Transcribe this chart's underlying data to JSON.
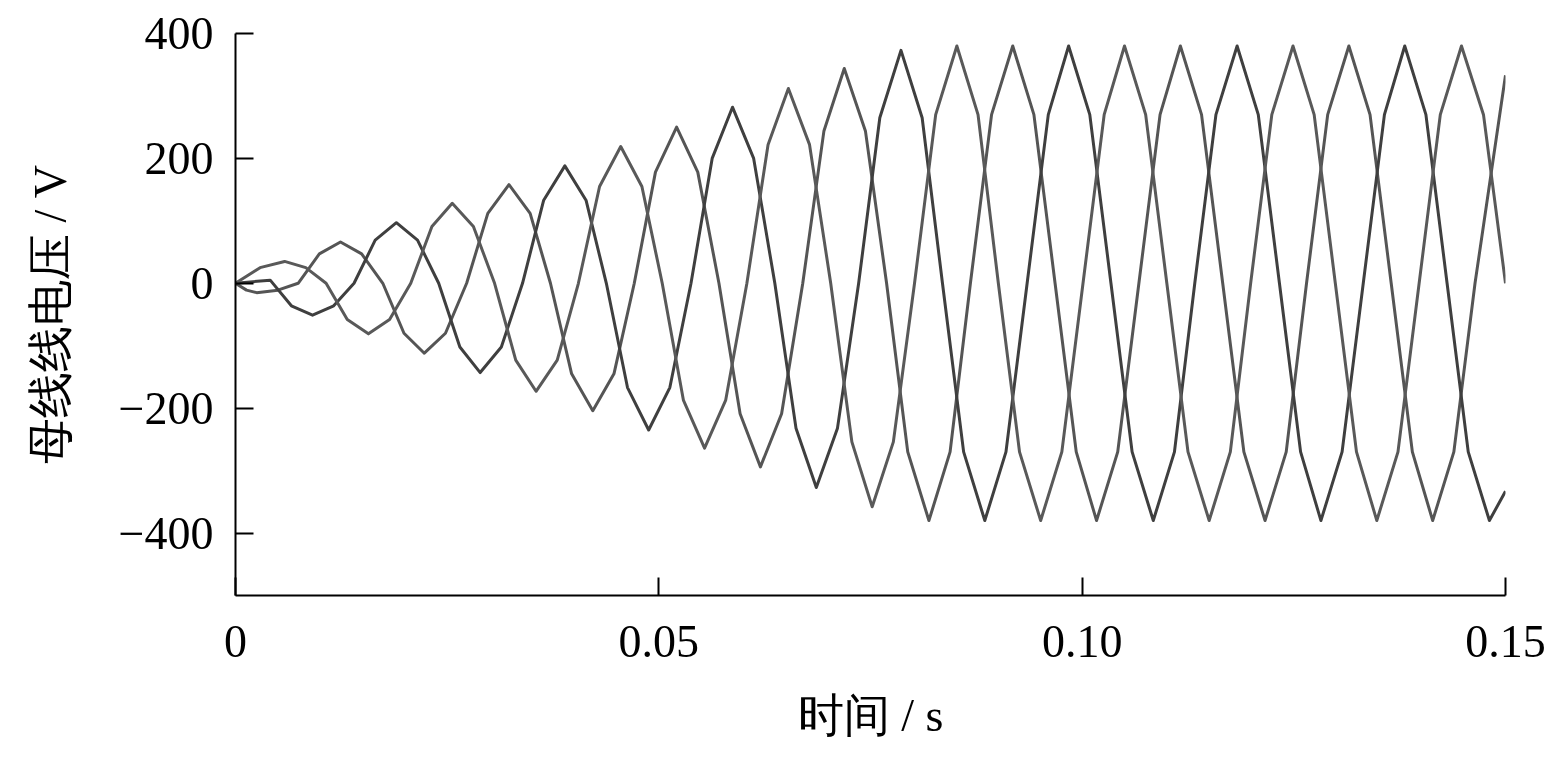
{
  "chart_data": {
    "type": "line",
    "xlabel": "时间 / s",
    "ylabel": "母线线电压 / V",
    "xlim": [
      0,
      0.15
    ],
    "ylim": [
      -500,
      400
    ],
    "xticks": [
      0,
      0.05,
      {
        "value": 0.1,
        "label": "0.10"
      },
      0.15
    ],
    "yticks": [
      {
        "value": -400,
        "label": "−400"
      },
      {
        "value": -200,
        "label": "−200"
      },
      0,
      200,
      400
    ],
    "line_style": "solid",
    "series": [
      {
        "color": "#555555",
        "x": [
          0,
          0.0013,
          0.0025,
          0.005,
          0.0074,
          0.0099,
          0.0124,
          0.0149,
          0.0174,
          0.0199,
          0.0223,
          0.0248,
          0.0273,
          0.0298,
          0.0323,
          0.0348,
          0.0372,
          0.0397,
          0.0422,
          0.0447,
          0.0471,
          0.0496,
          0.0521,
          0.0546,
          0.0571,
          0.0596,
          0.062,
          0.0645,
          0.067,
          0.0695,
          0.0719,
          0.0744,
          0.0769,
          0.0794,
          0.0819,
          0.0844,
          0.0868,
          0.0893,
          0.0918,
          0.0943,
          0.0968,
          0.0993,
          0.1017,
          0.1042,
          0.1067,
          0.1092,
          0.1116,
          0.1141,
          0.1166,
          0.1191,
          0.1216,
          0.1241,
          0.1265,
          0.129,
          0.1315,
          0.134,
          0.1365,
          0.139,
          0.1414,
          0.1439,
          0.1464,
          0.15
        ],
        "values": [
          0,
          -11,
          -15,
          -11,
          0,
          47,
          66,
          47,
          0,
          -80,
          -112,
          -80,
          0,
          112,
          158,
          112,
          0,
          -145,
          -204,
          -145,
          0,
          178,
          250,
          178,
          0,
          -209,
          -294,
          -209,
          0,
          244,
          344,
          244,
          0,
          -270,
          -380,
          -270,
          0,
          270,
          380,
          270,
          0,
          -270,
          -380,
          -270,
          0,
          270,
          380,
          270,
          0,
          -270,
          -380,
          -270,
          0,
          270,
          380,
          270,
          0,
          -270,
          -380,
          -270,
          0,
          333
        ]
      },
      {
        "color": "#3f3f3f",
        "x": [
          0,
          0.0041,
          0.0066,
          0.0091,
          0.0116,
          0.014,
          0.0165,
          0.019,
          0.0215,
          0.024,
          0.0265,
          0.0289,
          0.0314,
          0.0339,
          0.0364,
          0.0389,
          0.0414,
          0.0438,
          0.0463,
          0.0488,
          0.0513,
          0.0538,
          0.0563,
          0.0587,
          0.0612,
          0.0637,
          0.0662,
          0.0686,
          0.0711,
          0.0736,
          0.0761,
          0.0786,
          0.0811,
          0.0835,
          0.086,
          0.0885,
          0.091,
          0.0935,
          0.096,
          0.0984,
          0.1009,
          0.1034,
          0.1059,
          0.1084,
          0.1109,
          0.1133,
          0.1158,
          0.1183,
          0.1208,
          0.1233,
          0.1258,
          0.1282,
          0.1307,
          0.1332,
          0.1357,
          0.1381,
          0.1406,
          0.1431,
          0.1456,
          0.1481,
          0.15
        ],
        "values": [
          0,
          5,
          -36,
          -51,
          -36,
          0,
          69,
          97,
          69,
          0,
          -102,
          -143,
          -102,
          0,
          133,
          188,
          133,
          0,
          -167,
          -235,
          -167,
          0,
          200,
          282,
          200,
          0,
          -232,
          -327,
          -232,
          0,
          265,
          373,
          265,
          0,
          -270,
          -380,
          -270,
          0,
          270,
          380,
          270,
          0,
          -270,
          -380,
          -270,
          0,
          270,
          380,
          270,
          0,
          -270,
          -380,
          -270,
          0,
          270,
          380,
          270,
          0,
          -270,
          -380,
          -333
        ]
      },
      {
        "color": "#595959",
        "x": [
          0,
          0.0029,
          0.0058,
          0.0083,
          0.0107,
          0.0132,
          0.0157,
          0.0182,
          0.0207,
          0.0232,
          0.0256,
          0.0281,
          0.0306,
          0.0331,
          0.0355,
          0.038,
          0.0405,
          0.043,
          0.0455,
          0.048,
          0.0504,
          0.0529,
          0.0554,
          0.0579,
          0.0604,
          0.0629,
          0.0653,
          0.0678,
          0.0703,
          0.0728,
          0.0752,
          0.0777,
          0.0802,
          0.0827,
          0.0852,
          0.0877,
          0.0901,
          0.0926,
          0.0951,
          0.0976,
          0.1001,
          0.1026,
          0.105,
          0.1075,
          0.11,
          0.1125,
          0.115,
          0.1175,
          0.1199,
          0.1224,
          0.1249,
          0.1274,
          0.1299,
          0.1324,
          0.1348,
          0.1373,
          0.1398,
          0.1423,
          0.1448,
          0.1474,
          0.15
        ],
        "values": [
          0,
          25,
          35,
          25,
          0,
          -58,
          -81,
          -58,
          0,
          91,
          128,
          91,
          0,
          -123,
          -173,
          -123,
          0,
          155,
          219,
          155,
          0,
          -187,
          -264,
          -187,
          0,
          222,
          312,
          222,
          0,
          -254,
          -358,
          -254,
          0,
          270,
          380,
          270,
          0,
          -270,
          -380,
          -270,
          0,
          270,
          380,
          270,
          0,
          -270,
          -380,
          -270,
          0,
          270,
          380,
          270,
          0,
          -270,
          -380,
          -270,
          0,
          270,
          380,
          270,
          0
        ]
      }
    ]
  }
}
